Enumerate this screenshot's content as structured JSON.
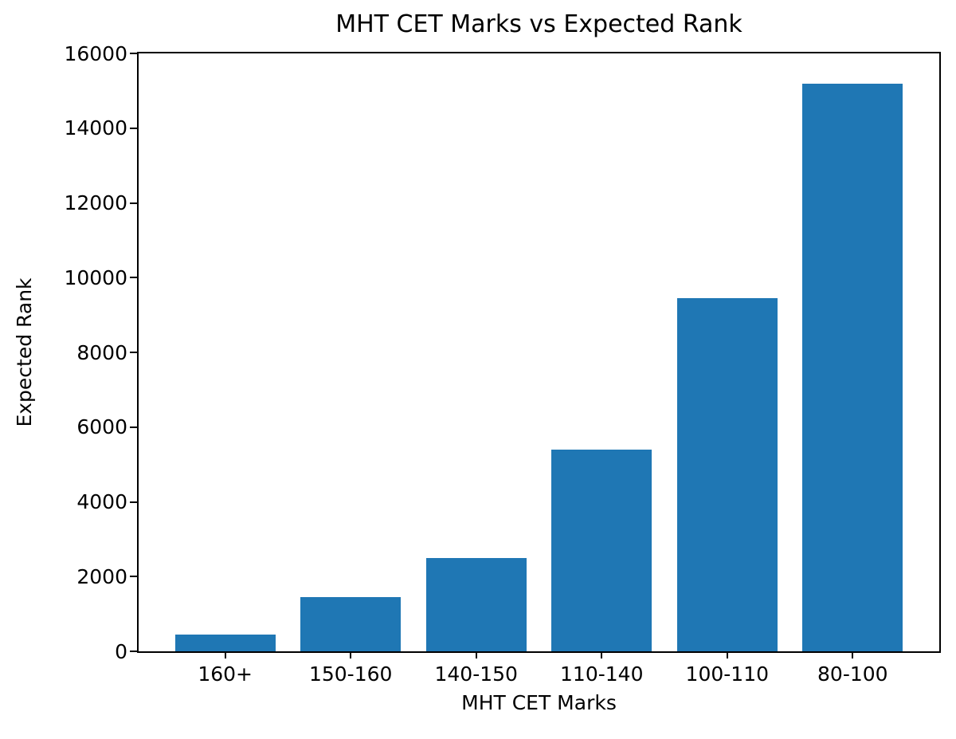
{
  "chart_data": {
    "type": "bar",
    "title": "MHT CET Marks vs Expected Rank",
    "xlabel": "MHT CET Marks",
    "ylabel": "Expected Rank",
    "categories": [
      "160+",
      "150-160",
      "140-150",
      "110-140",
      "100-110",
      "80-100"
    ],
    "values": [
      450,
      1450,
      2500,
      5400,
      9450,
      15200
    ],
    "ylim": [
      0,
      16000
    ],
    "yticks": [
      0,
      2000,
      4000,
      6000,
      8000,
      10000,
      12000,
      14000,
      16000
    ],
    "ytick_labels": [
      "0",
      "2000",
      "4000",
      "6000",
      "8000",
      "10000",
      "12000",
      "14000",
      "16000"
    ],
    "bar_color": "#1f77b4",
    "text_color": "#000000",
    "grid": "off",
    "legend": "none"
  }
}
